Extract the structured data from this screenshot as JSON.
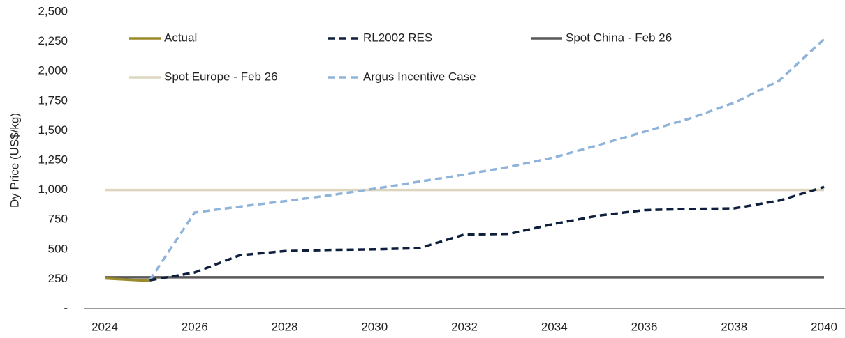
{
  "chart_data": {
    "type": "line",
    "y_label": "Dy Price (US$/kg)",
    "x": [
      2024,
      2025,
      2026,
      2027,
      2028,
      2029,
      2030,
      2031,
      2032,
      2033,
      2034,
      2035,
      2036,
      2037,
      2038,
      2039,
      2040
    ],
    "series": [
      {
        "name": "Actual",
        "color": "#9a8a2a",
        "dashed": false,
        "values": [
          255,
          235,
          null,
          null,
          null,
          null,
          null,
          null,
          null,
          null,
          null,
          null,
          null,
          null,
          null,
          null,
          null
        ]
      },
      {
        "name": "RL2002 RES",
        "color": "#0d1f3c",
        "dashed": true,
        "values": [
          null,
          240,
          305,
          450,
          485,
          495,
          500,
          510,
          625,
          630,
          715,
          785,
          830,
          840,
          845,
          910,
          1025
        ]
      },
      {
        "name": "Spot China - Feb 26",
        "color": "#595959",
        "dashed": false,
        "values": [
          265,
          265,
          265,
          265,
          265,
          265,
          265,
          265,
          265,
          265,
          265,
          265,
          265,
          265,
          265,
          265,
          265
        ]
      },
      {
        "name": "Spot Europe - Feb 26",
        "color": "#ddd6bf",
        "dashed": false,
        "values": [
          1000,
          1000,
          1000,
          1000,
          1000,
          1000,
          1000,
          1000,
          1000,
          1000,
          1000,
          1000,
          1000,
          1000,
          1000,
          1000,
          1000
        ]
      },
      {
        "name": "Argus Incentive Case",
        "color": "#8fb3d9",
        "dashed": true,
        "values": [
          null,
          240,
          810,
          860,
          905,
          955,
          1010,
          1070,
          1130,
          1195,
          1275,
          1380,
          1490,
          1600,
          1735,
          1920,
          2270
        ]
      }
    ],
    "xlim": [
      2024,
      2040
    ],
    "xticks": [
      2024,
      2026,
      2028,
      2030,
      2032,
      2034,
      2036,
      2038,
      2040
    ],
    "ylim": [
      0,
      2500
    ],
    "yticks": [
      {
        "value": 0,
        "label": "-"
      },
      250,
      500,
      750,
      {
        "value": 1000,
        "label": "1,000"
      },
      {
        "value": 1250,
        "label": "1,250"
      },
      {
        "value": 1500,
        "label": "1,500"
      },
      {
        "value": 1750,
        "label": "1,750"
      },
      {
        "value": 2000,
        "label": "2,000"
      },
      {
        "value": 2250,
        "label": "2,250"
      },
      {
        "value": 2500,
        "label": "2,500"
      }
    ],
    "grid": false
  }
}
